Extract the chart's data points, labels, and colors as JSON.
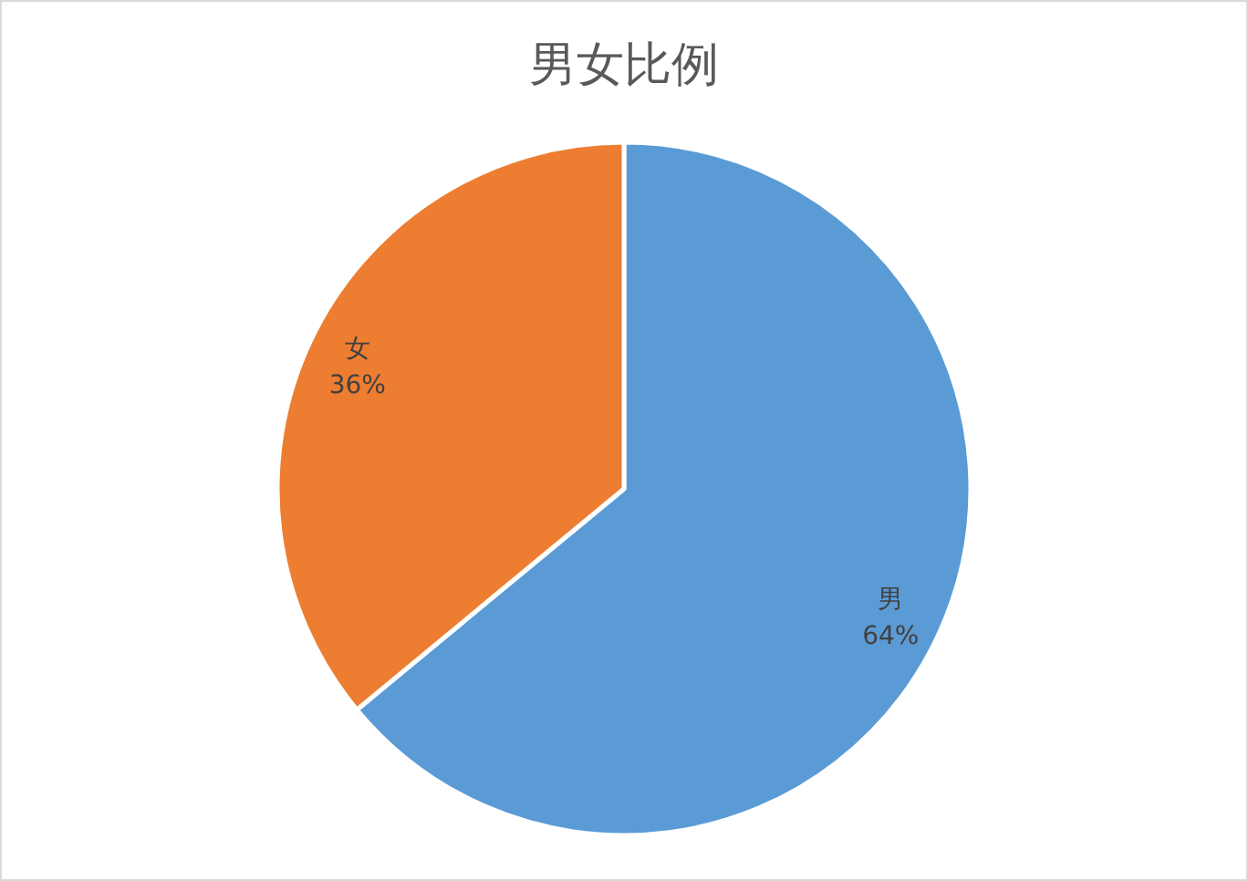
{
  "chart_data": {
    "type": "pie",
    "title": "男女比例",
    "categories": [
      "男",
      "女"
    ],
    "values": [
      64,
      36
    ],
    "colors": [
      "#5b9bd5",
      "#ed7d31"
    ],
    "value_labels": [
      "64%",
      "36%"
    ]
  }
}
